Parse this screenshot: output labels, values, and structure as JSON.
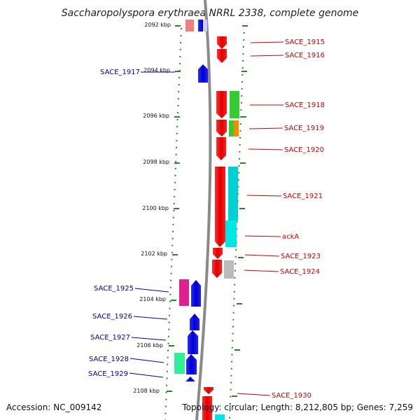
{
  "title": "Saccharopolyspora erythraea NRRL 2338, complete genome",
  "accession": "Accession: NC_009142",
  "topology": "Topology: circular; Length: 8,212,805 bp; Genes: 7,259",
  "ticks": [
    "2092 kbp",
    "2094 kbp",
    "2096 kbp",
    "2098 kbp",
    "2100 kbp",
    "2102 kbp",
    "2104 kbp",
    "2106 kbp",
    "2108 kbp"
  ],
  "genes_right": [
    "SACE_1915",
    "SACE_1916",
    "SACE_1918",
    "SACE_1919",
    "SACE_1920",
    "SACE_1921",
    "ackA",
    "SACE_1923",
    "SACE_1924",
    "SACE_1930"
  ],
  "genes_left": [
    "SACE_1917",
    "SACE_1925",
    "SACE_1926",
    "SACE_1927",
    "SACE_1928",
    "SACE_1929"
  ],
  "colors": {
    "forward_gene": "#ff0000",
    "reverse_gene": "#0000ff",
    "backbone": "#888888",
    "guide_dots": "#228822",
    "cog_green": "#33cc33",
    "cog_orange": "#ff8800",
    "cog_cyan": "#00e5e5",
    "cog_grey": "#bbbbbb",
    "cog_pink": "#e0208c",
    "cog_teal": "#33ee99",
    "cog_salmon": "#f08080",
    "cog_lavender": "#ccccff"
  }
}
